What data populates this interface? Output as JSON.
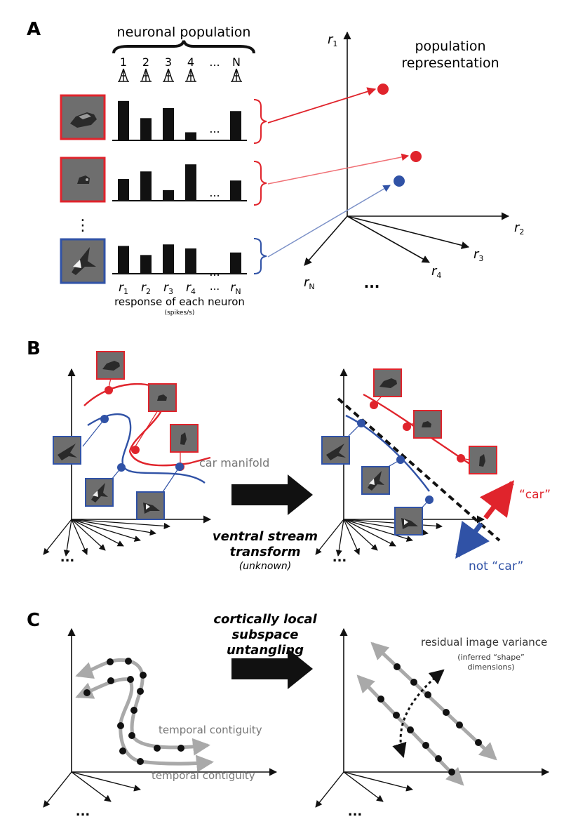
{
  "colors": {
    "red": "#e0242c",
    "blue": "#3052a6",
    "black": "#111111",
    "gray_arrow": "#a9a9a9",
    "thumb": "#6e6e6e"
  },
  "panelA": {
    "letter": "A",
    "population_title": "neuronal population",
    "neuron_numbers": [
      "1",
      "2",
      "3",
      "4",
      "...",
      "N"
    ],
    "response_labels": [
      {
        "base": "r",
        "sub": "1"
      },
      {
        "base": "r",
        "sub": "2"
      },
      {
        "base": "r",
        "sub": "3"
      },
      {
        "base": "r",
        "sub": "4"
      },
      {
        "base": "...",
        "sub": ""
      },
      {
        "base": "r",
        "sub": "N"
      }
    ],
    "response_caption": "response of each neuron",
    "response_units": "(spikes/s)",
    "ellipsis_vertical": "⋮",
    "rows": [
      {
        "color": "red",
        "bars": [
          0.78,
          0.44,
          0.64,
          0.16,
          0.58
        ]
      },
      {
        "color": "red",
        "bars": [
          0.43,
          0.58,
          0.21,
          0.72,
          0.4
        ]
      },
      {
        "color": "blue",
        "bars": [
          0.55,
          0.37,
          0.58,
          0.5,
          0.42
        ]
      }
    ],
    "bar_ellipsis": "...",
    "space_title_line1": "population",
    "space_title_line2": "representation",
    "axes": {
      "r1": {
        "base": "r",
        "sub": "1"
      },
      "r2": {
        "base": "r",
        "sub": "2"
      },
      "r3": {
        "base": "r",
        "sub": "3"
      },
      "r4": {
        "base": "r",
        "sub": "4"
      },
      "rN": {
        "base": "r",
        "sub": "N"
      },
      "ellipsis": "..."
    }
  },
  "panelB": {
    "letter": "B",
    "car_manifold_label": "car manifold",
    "transform_line1": "ventral stream",
    "transform_line2": "transform",
    "transform_note": "(unknown)",
    "car_label": "“car”",
    "notcar_label": "not “car”",
    "ellipsis": "..."
  },
  "panelC": {
    "letter": "C",
    "center_line1": "cortically local",
    "center_line2": "subspace",
    "center_line3": "untangling",
    "temporal_label_1": "temporal contiguity",
    "temporal_label_2": "temporal contiguity",
    "residual_label": "residual image variance",
    "residual_note_line1": "(inferred “shape”",
    "residual_note_line2": "dimensions)",
    "ellipsis": "..."
  }
}
